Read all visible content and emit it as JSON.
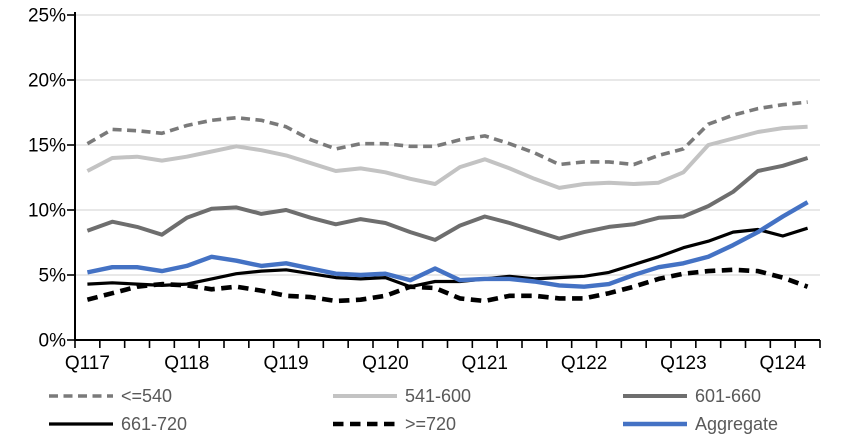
{
  "chart_data": {
    "type": "line",
    "title": "",
    "xlabel": "",
    "ylabel": "",
    "x_categories": [
      "Q117",
      "Q217",
      "Q317",
      "Q417",
      "Q118",
      "Q218",
      "Q318",
      "Q418",
      "Q119",
      "Q219",
      "Q319",
      "Q419",
      "Q120",
      "Q220",
      "Q320",
      "Q420",
      "Q121",
      "Q221",
      "Q321",
      "Q421",
      "Q122",
      "Q222",
      "Q322",
      "Q422",
      "Q123",
      "Q223",
      "Q323",
      "Q423",
      "Q124",
      "Q224"
    ],
    "x_tick_labels": [
      "Q117",
      "Q118",
      "Q119",
      "Q120",
      "Q121",
      "Q122",
      "Q123",
      "Q124"
    ],
    "y_axis": {
      "min": 0,
      "max": 25,
      "step": 5,
      "labels": [
        "0%",
        "5%",
        "10%",
        "15%",
        "20%",
        "25%"
      ]
    },
    "grid": "horizontal",
    "legend_position": "bottom",
    "colors": {
      "gridline": "#d9d9d9",
      "axis": "#000000",
      "axis_label": "#000000",
      "legend_text": "#595959",
      "accent_blue": "#4472c4"
    },
    "series": [
      {
        "name": "<=540",
        "color": "#7a7a7a",
        "style": "dashed",
        "values": [
          15.1,
          16.2,
          16.1,
          15.9,
          16.5,
          16.9,
          17.1,
          16.9,
          16.4,
          15.4,
          14.7,
          15.1,
          15.1,
          14.9,
          14.9,
          15.4,
          15.7,
          15.1,
          14.4,
          13.5,
          13.7,
          13.7,
          13.5,
          14.2,
          14.7,
          16.6,
          17.3,
          17.8,
          18.1,
          18.3
        ]
      },
      {
        "name": "541-600",
        "color": "#c3c3c3",
        "style": "solid",
        "values": [
          13.0,
          14.0,
          14.1,
          13.8,
          14.1,
          14.5,
          14.9,
          14.6,
          14.2,
          13.6,
          13.0,
          13.2,
          12.9,
          12.4,
          12.0,
          13.3,
          13.9,
          13.2,
          12.4,
          11.7,
          12.0,
          12.1,
          12.0,
          12.1,
          12.9,
          15.0,
          15.5,
          16.0,
          16.3,
          16.4
        ]
      },
      {
        "name": "601-660",
        "color": "#6e6e6e",
        "style": "solid",
        "values": [
          8.4,
          9.1,
          8.7,
          8.1,
          9.4,
          10.1,
          10.2,
          9.7,
          10.0,
          9.4,
          8.9,
          9.3,
          9.0,
          8.3,
          7.7,
          8.8,
          9.5,
          9.0,
          8.4,
          7.8,
          8.3,
          8.7,
          8.9,
          9.4,
          9.5,
          10.3,
          11.4,
          13.0,
          13.4,
          14.0
        ]
      },
      {
        "name": "661-720",
        "color": "#000000",
        "style": "solid",
        "values": [
          4.3,
          4.4,
          4.3,
          4.2,
          4.3,
          4.7,
          5.1,
          5.3,
          5.4,
          5.1,
          4.8,
          4.7,
          4.8,
          4.1,
          4.5,
          4.5,
          4.7,
          4.9,
          4.7,
          4.8,
          4.9,
          5.2,
          5.8,
          6.4,
          7.1,
          7.6,
          8.3,
          8.5,
          8.0,
          8.6
        ]
      },
      {
        "name": ">=720",
        "color": "#000000",
        "style": "dashed",
        "values": [
          3.1,
          3.6,
          4.1,
          4.3,
          4.2,
          3.9,
          4.1,
          3.8,
          3.4,
          3.3,
          3.0,
          3.1,
          3.4,
          4.1,
          4.0,
          3.2,
          3.0,
          3.4,
          3.4,
          3.2,
          3.2,
          3.6,
          4.1,
          4.7,
          5.1,
          5.3,
          5.4,
          5.3,
          4.8,
          4.1
        ]
      },
      {
        "name": "Aggregate",
        "color": "#4472c4",
        "style": "solid",
        "values": [
          5.2,
          5.6,
          5.6,
          5.3,
          5.7,
          6.4,
          6.1,
          5.7,
          5.9,
          5.5,
          5.1,
          5.0,
          5.1,
          4.6,
          5.5,
          4.6,
          4.7,
          4.7,
          4.5,
          4.2,
          4.1,
          4.3,
          5.0,
          5.6,
          5.9,
          6.4,
          7.3,
          8.3,
          9.5,
          10.6
        ]
      }
    ]
  }
}
